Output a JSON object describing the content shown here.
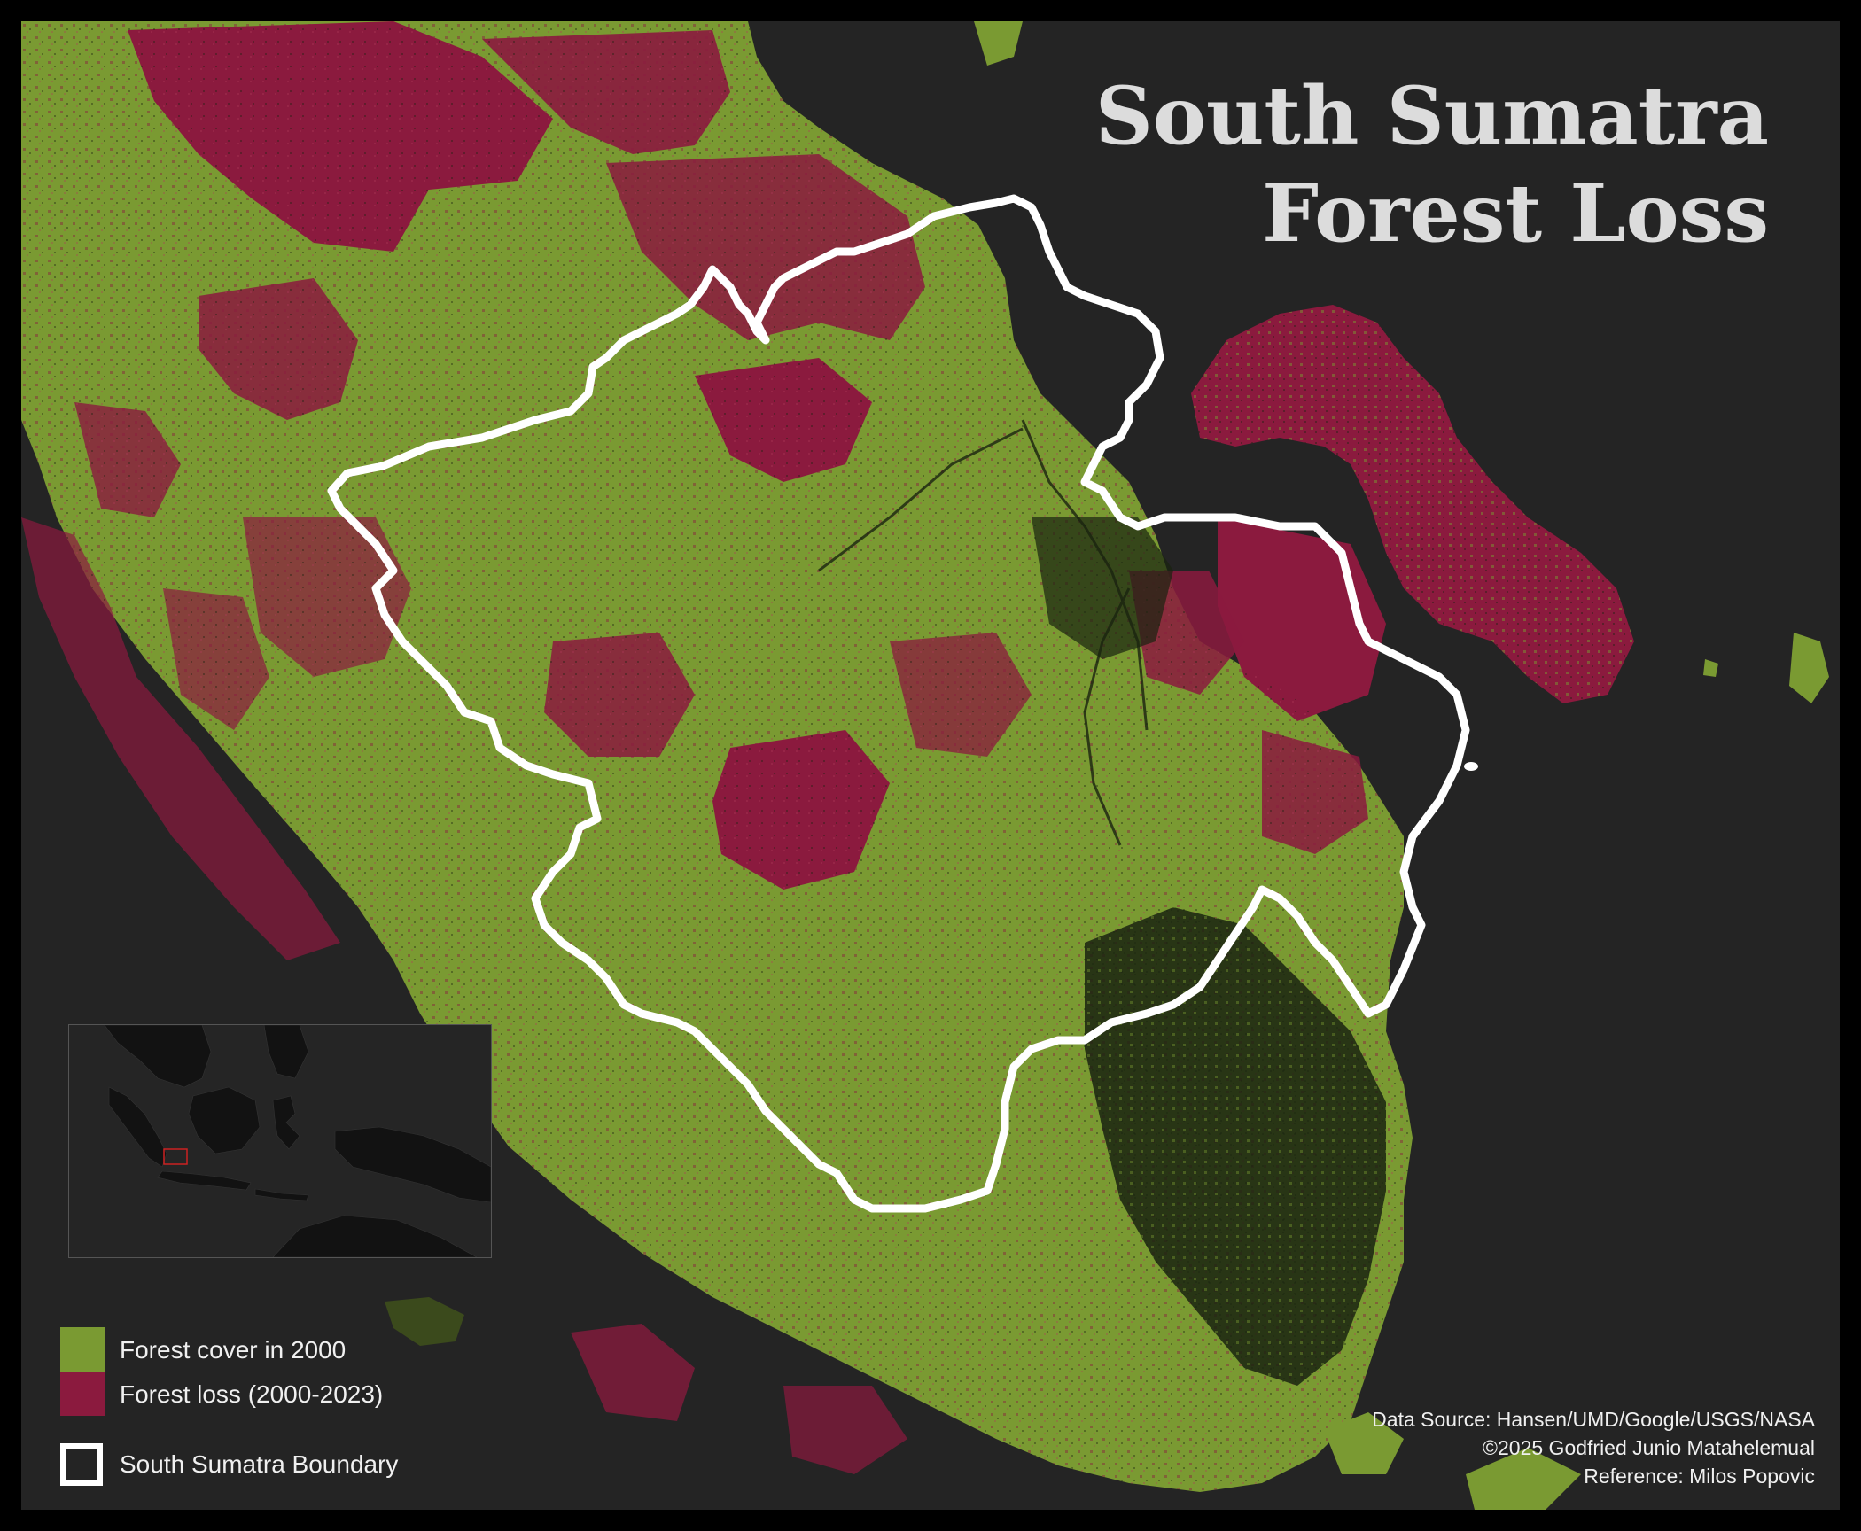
{
  "title": {
    "line1": "South Sumatra",
    "line2": "Forest Loss"
  },
  "legend": {
    "items": [
      {
        "label": "Forest cover in 2000",
        "color": "#7a9a32",
        "icon": "forest-cover-swatch"
      },
      {
        "label": "Forest loss (2000-2023)",
        "color": "#8b1a3e",
        "icon": "forest-loss-swatch"
      }
    ],
    "boundary": {
      "label": "South Sumatra Boundary",
      "color": "#ffffff",
      "icon": "boundary-outline-swatch"
    }
  },
  "credits": {
    "source": "Data Source: Hansen/UMD/Google/USGS/NASA",
    "copyright": "©2025 Godfried Junio Matahelemual",
    "reference": "Reference: Milos Popovic"
  },
  "colors": {
    "background": "#242424",
    "frame": "#000000",
    "forest": "#7a9a32",
    "loss": "#8b1a3e",
    "dark_vegetation": "#1a2310",
    "boundary": "#ffffff",
    "inset_highlight": "#cc2222"
  }
}
